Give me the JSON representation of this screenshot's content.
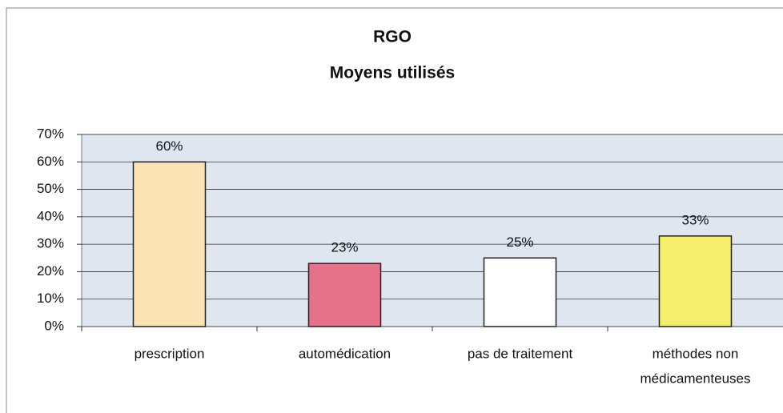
{
  "chart_data": {
    "type": "bar",
    "title": [
      "RGO",
      "Moyens utilisés"
    ],
    "categories": [
      [
        "prescription"
      ],
      [
        "automédication"
      ],
      [
        "pas de traitement"
      ],
      [
        "méthodes non",
        "médicamenteuses"
      ]
    ],
    "values": [
      60,
      23,
      25,
      33
    ],
    "value_labels": [
      "60%",
      "23%",
      "25%",
      "33%"
    ],
    "colors": [
      "#fbe3b5",
      "#e6718b",
      "#ffffff",
      "#f4ee6c"
    ],
    "ylim": [
      0,
      70
    ],
    "yticks": [
      {
        "value": 0,
        "label": "0%"
      },
      {
        "value": 10,
        "label": "10%"
      },
      {
        "value": 20,
        "label": "20%"
      },
      {
        "value": 30,
        "label": "30%"
      },
      {
        "value": 40,
        "label": "40%"
      },
      {
        "value": 50,
        "label": "50%"
      },
      {
        "value": 60,
        "label": "60%"
      },
      {
        "value": 70,
        "label": "70%"
      }
    ],
    "grid": true
  }
}
